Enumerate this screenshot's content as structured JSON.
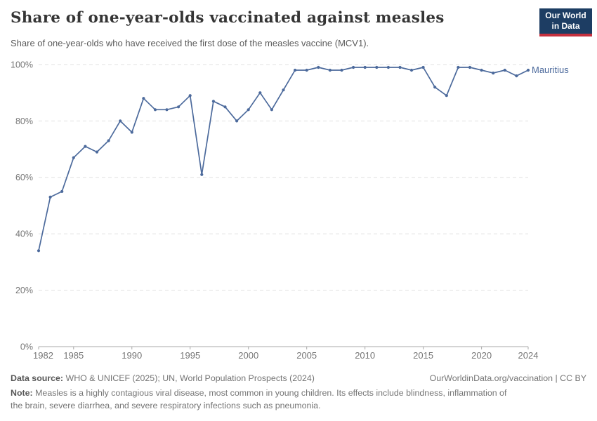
{
  "chart_data": {
    "type": "line",
    "title": "Share of one-year-olds vaccinated against measles",
    "subtitle": "Share of one-year-olds who have received the first dose of the measles vaccine (MCV1).",
    "x": [
      1982,
      1983,
      1984,
      1985,
      1986,
      1987,
      1988,
      1989,
      1990,
      1991,
      1992,
      1993,
      1994,
      1995,
      1996,
      1997,
      1998,
      1999,
      2000,
      2001,
      2002,
      2003,
      2004,
      2005,
      2006,
      2007,
      2008,
      2009,
      2010,
      2011,
      2012,
      2013,
      2014,
      2015,
      2016,
      2017,
      2018,
      2019,
      2020,
      2021,
      2022,
      2023,
      2024
    ],
    "series": [
      {
        "name": "Mauritius",
        "color": "#4C6A9C",
        "values": [
          34,
          53,
          55,
          67,
          71,
          69,
          73,
          80,
          76,
          88,
          84,
          84,
          85,
          89,
          61,
          87,
          85,
          80,
          84,
          90,
          84,
          91,
          98,
          98,
          99,
          98,
          98,
          99,
          99,
          99,
          99,
          99,
          98,
          99,
          92,
          89,
          99,
          99,
          98,
          97,
          98,
          96,
          98
        ]
      }
    ],
    "xlabel": "",
    "ylabel": "",
    "ylim": [
      0,
      100
    ],
    "yticks": [
      {
        "v": 0,
        "label": "0%"
      },
      {
        "v": 20,
        "label": "20%"
      },
      {
        "v": 40,
        "label": "40%"
      },
      {
        "v": 60,
        "label": "60%"
      },
      {
        "v": 80,
        "label": "80%"
      },
      {
        "v": 100,
        "label": "100%"
      }
    ],
    "xticks": [
      {
        "v": 1982,
        "label": "1982"
      },
      {
        "v": 1985,
        "label": "1985"
      },
      {
        "v": 1990,
        "label": "1990"
      },
      {
        "v": 1995,
        "label": "1995"
      },
      {
        "v": 2000,
        "label": "2000"
      },
      {
        "v": 2005,
        "label": "2005"
      },
      {
        "v": 2010,
        "label": "2010"
      },
      {
        "v": 2015,
        "label": "2015"
      },
      {
        "v": 2020,
        "label": "2020"
      },
      {
        "v": 2024,
        "label": "2024"
      }
    ],
    "grid": "horizontal-dashed",
    "legend_position": "line-end-label"
  },
  "logo": {
    "line1": "Our World",
    "line2": "in Data",
    "bg_color": "#1d3d63",
    "stripe_color": "#c5303e"
  },
  "footer": {
    "datasource_label": "Data source:",
    "datasource_text": " WHO & UNICEF (2025); UN, World Population Prospects (2024)",
    "license_text": "OurWorldinData.org/vaccination | CC BY",
    "note_label": "Note:",
    "note_text": " Measles is a highly contagious viral disease, most common in young children. Its effects include blindness, inflammation of the brain, severe diarrhea, and severe respiratory infections such as pneumonia."
  }
}
